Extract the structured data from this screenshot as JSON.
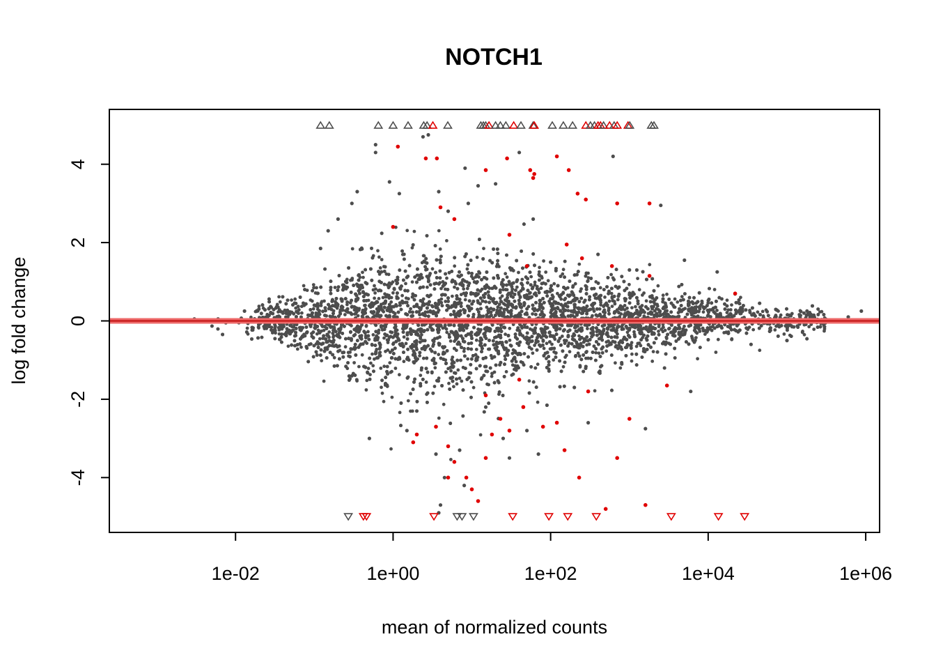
{
  "chart_data": {
    "type": "scatter",
    "title": "NOTCH1",
    "xlabel": "mean of normalized counts",
    "ylabel": "log fold change",
    "x_scale": "log10",
    "xlim": [
      0.00025,
      1500000
    ],
    "ylim": [
      -5.4,
      5.4
    ],
    "x_ticks": [
      0.01,
      1,
      100,
      10000,
      1000000
    ],
    "x_tick_labels": [
      "1e-02",
      "1e+00",
      "1e+02",
      "1e+04",
      "1e+06"
    ],
    "y_ticks": [
      -4,
      -2,
      0,
      2,
      4
    ],
    "y_tick_labels": [
      "-4",
      "-2",
      "0",
      "2",
      "4"
    ],
    "reference_line_y": 0,
    "grid": false,
    "legend": "none",
    "colors": {
      "not_significant": "#4d4d4d",
      "significant": "#e00000",
      "reference_line": "#ee6a6a"
    },
    "series": [
      {
        "significant": false,
        "points": [
          [
            0.003,
            0.05
          ],
          [
            0.006,
            0.05
          ],
          [
            0.013,
            0.25
          ],
          [
            0.02,
            0.05
          ],
          [
            0.04,
            0.2
          ],
          [
            0.08,
            -0.3
          ],
          [
            0.1,
            0.4
          ],
          [
            0.12,
            1.85
          ],
          [
            0.15,
            2.3
          ],
          [
            0.2,
            2.6
          ],
          [
            0.3,
            3.0
          ],
          [
            0.35,
            3.3
          ],
          [
            0.6,
            4.3
          ],
          [
            0.6,
            4.5
          ],
          [
            0.9,
            3.55
          ],
          [
            1.2,
            3.25
          ],
          [
            2.4,
            4.7
          ],
          [
            2.8,
            4.75
          ],
          [
            3.8,
            3.3
          ],
          [
            5.0,
            2.8
          ],
          [
            8.2,
            3.9
          ],
          [
            9.0,
            3.0
          ],
          [
            12.0,
            3.45
          ],
          [
            20.0,
            3.5
          ],
          [
            40.0,
            4.3
          ],
          [
            60.0,
            2.6
          ],
          [
            100.0,
            1.5
          ],
          [
            400.0,
            1.7
          ],
          [
            620.0,
            4.2
          ],
          [
            1000.0,
            1.3
          ],
          [
            2500.0,
            2.95
          ],
          [
            5000.0,
            1.55
          ],
          [
            13000.0,
            1.25
          ],
          [
            45000.0,
            0.45
          ],
          [
            180000.0,
            0.25
          ],
          [
            880000.0,
            0.25
          ],
          [
            0.5,
            -3.0
          ],
          [
            1.5,
            -2.8
          ],
          [
            3.5,
            -3.4
          ],
          [
            4.5,
            -4.0
          ],
          [
            4.0,
            -4.7
          ],
          [
            3.8,
            -4.9
          ],
          [
            8.0,
            -4.2
          ],
          [
            15.0,
            -2.2
          ],
          [
            30.0,
            -3.5
          ],
          [
            50.0,
            -2.8
          ],
          [
            70.0,
            -3.4
          ],
          [
            300.0,
            -2.6
          ],
          [
            1600.0,
            -2.75
          ],
          [
            6000.0,
            -1.8
          ],
          [
            35000.0,
            -0.6
          ],
          [
            100000.0,
            -0.5
          ],
          [
            300000.0,
            -0.15
          ],
          [
            600000.0,
            0.1
          ],
          [
            0.8,
            -1.6
          ],
          [
            2.0,
            -2.3
          ],
          [
            7.0,
            -3.3
          ],
          [
            25.0,
            -3.0
          ],
          [
            200.0,
            -1.7
          ],
          [
            800.0,
            -1.1
          ]
        ]
      },
      {
        "significant": true,
        "points": [
          [
            1.15,
            4.45
          ],
          [
            2.6,
            4.15
          ],
          [
            3.6,
            4.15
          ],
          [
            15.0,
            3.85
          ],
          [
            28.0,
            4.15
          ],
          [
            55.0,
            3.85
          ],
          [
            62.0,
            3.75
          ],
          [
            60.0,
            3.65
          ],
          [
            120.0,
            4.2
          ],
          [
            170.0,
            3.85
          ],
          [
            220.0,
            3.25
          ],
          [
            280.0,
            3.1
          ],
          [
            700.0,
            3.0
          ],
          [
            1800.0,
            3.0
          ],
          [
            4.0,
            2.9
          ],
          [
            1.0,
            2.4
          ],
          [
            6.0,
            2.6
          ],
          [
            30.0,
            2.2
          ],
          [
            50.0,
            1.4
          ],
          [
            160.0,
            1.95
          ],
          [
            250.0,
            1.6
          ],
          [
            600.0,
            1.4
          ],
          [
            1800.0,
            1.15
          ],
          [
            22000.0,
            0.7
          ],
          [
            2.0,
            -2.9
          ],
          [
            1.8,
            -3.1
          ],
          [
            3.5,
            -2.7
          ],
          [
            5.0,
            -3.2
          ],
          [
            6.0,
            -3.6
          ],
          [
            5.0,
            -4.0
          ],
          [
            8.5,
            -4.0
          ],
          [
            10.0,
            -4.3
          ],
          [
            12.0,
            -4.6
          ],
          [
            15.0,
            -3.5
          ],
          [
            18.0,
            -2.9
          ],
          [
            23.0,
            -2.5
          ],
          [
            30.0,
            -2.8
          ],
          [
            45.0,
            -2.2
          ],
          [
            80.0,
            -2.7
          ],
          [
            120.0,
            -2.6
          ],
          [
            150.0,
            -3.3
          ],
          [
            230.0,
            -4.0
          ],
          [
            300.0,
            -1.8
          ],
          [
            500.0,
            -4.8
          ],
          [
            700.0,
            -3.5
          ],
          [
            1000.0,
            -2.5
          ],
          [
            1600.0,
            -4.7
          ],
          [
            3000.0,
            -1.65
          ],
          [
            40.0,
            -1.5
          ],
          [
            15.0,
            -1.9
          ]
        ]
      }
    ],
    "out_of_range": {
      "above": [
        {
          "x": 0.12,
          "sig": false
        },
        {
          "x": 0.155,
          "sig": false
        },
        {
          "x": 0.65,
          "sig": false
        },
        {
          "x": 1.0,
          "sig": false
        },
        {
          "x": 1.55,
          "sig": false
        },
        {
          "x": 2.45,
          "sig": false
        },
        {
          "x": 2.7,
          "sig": false
        },
        {
          "x": 3.2,
          "sig": true
        },
        {
          "x": 4.95,
          "sig": false
        },
        {
          "x": 13.0,
          "sig": false
        },
        {
          "x": 14.0,
          "sig": false
        },
        {
          "x": 15.0,
          "sig": false
        },
        {
          "x": 16.5,
          "sig": true
        },
        {
          "x": 20.0,
          "sig": false
        },
        {
          "x": 23.0,
          "sig": false
        },
        {
          "x": 27.0,
          "sig": false
        },
        {
          "x": 34.0,
          "sig": true
        },
        {
          "x": 42.0,
          "sig": false
        },
        {
          "x": 60.0,
          "sig": false
        },
        {
          "x": 62.0,
          "sig": true
        },
        {
          "x": 105.0,
          "sig": false
        },
        {
          "x": 145.0,
          "sig": false
        },
        {
          "x": 190.0,
          "sig": false
        },
        {
          "x": 280.0,
          "sig": true
        },
        {
          "x": 320.0,
          "sig": false
        },
        {
          "x": 360.0,
          "sig": false
        },
        {
          "x": 400.0,
          "sig": true
        },
        {
          "x": 430.0,
          "sig": true
        },
        {
          "x": 470.0,
          "sig": false
        },
        {
          "x": 560.0,
          "sig": true
        },
        {
          "x": 640.0,
          "sig": false
        },
        {
          "x": 700.0,
          "sig": true
        },
        {
          "x": 960.0,
          "sig": true
        },
        {
          "x": 1010.0,
          "sig": false
        },
        {
          "x": 1900.0,
          "sig": false
        },
        {
          "x": 2050.0,
          "sig": false
        }
      ],
      "below": [
        {
          "x": 0.27,
          "sig": false
        },
        {
          "x": 0.42,
          "sig": true
        },
        {
          "x": 0.46,
          "sig": true
        },
        {
          "x": 3.3,
          "sig": true
        },
        {
          "x": 6.5,
          "sig": false
        },
        {
          "x": 7.5,
          "sig": false
        },
        {
          "x": 10.5,
          "sig": false
        },
        {
          "x": 33.0,
          "sig": true
        },
        {
          "x": 95.0,
          "sig": true
        },
        {
          "x": 165.0,
          "sig": true
        },
        {
          "x": 380.0,
          "sig": true
        },
        {
          "x": 3400.0,
          "sig": true
        },
        {
          "x": 13500.0,
          "sig": true
        },
        {
          "x": 29000.0,
          "sig": true
        }
      ]
    }
  }
}
